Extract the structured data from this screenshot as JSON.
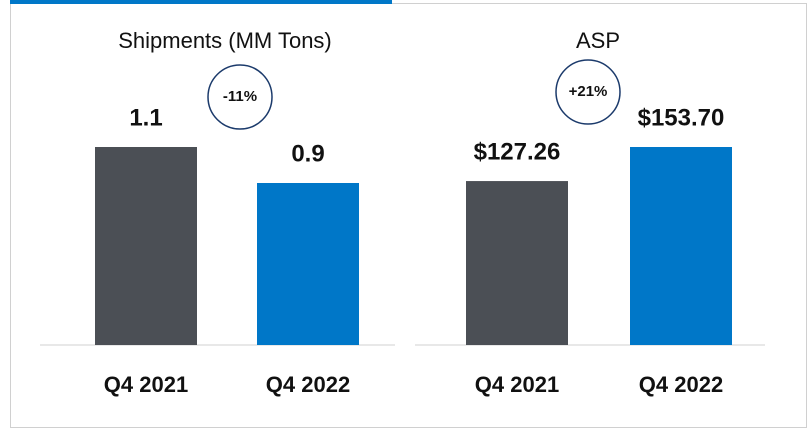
{
  "chart_data": [
    {
      "type": "bar",
      "title": "Shipments (MM Tons)",
      "categories": [
        "Q4 2021",
        "Q4 2022"
      ],
      "values": [
        1.1,
        0.9
      ],
      "colors": [
        "#4b4f55",
        "#0077c8"
      ],
      "annotation": "-11%"
    },
    {
      "type": "bar",
      "title": "ASP",
      "categories": [
        "Q4 2021",
        "Q4 2022"
      ],
      "values": [
        127.26,
        153.7
      ],
      "value_labels": [
        "$127.26",
        "$153.70"
      ],
      "colors": [
        "#4b4f55",
        "#0077c8"
      ],
      "annotation": "+21%"
    }
  ]
}
